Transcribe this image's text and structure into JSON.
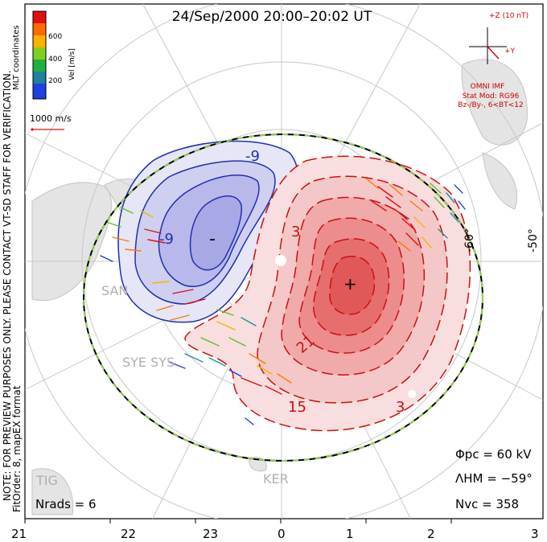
{
  "title": "24/Sep/2000 20:00–20:02 UT",
  "colorbar": {
    "label": "Vel [m/s]",
    "ticks": [
      "600",
      "400",
      "200"
    ],
    "colors": [
      "#e01010",
      "#ff6a00",
      "#ffb000",
      "#80d020",
      "#20b040",
      "#2080a0",
      "#2040e0"
    ]
  },
  "coordinates": "MLT coordinates",
  "scale_vector": "1000 m/s",
  "side_note": "NOTE: FOR PREVIEW PURPOSES ONLY. PLEASE CONTACT VT-SD STAFF FOR VERIFICATION.",
  "fit_order": "FitOrder: 8, mapEX format",
  "imf": {
    "z_label": "+Z (10 nT)",
    "y_label": "+Y",
    "source": "OMNI IMF",
    "model": "Stat Mod: RG96",
    "condition": "Bz-/By-, 6<BT<12"
  },
  "lat_labels": [
    "-60°",
    "-50°"
  ],
  "contours": {
    "neg": [
      "-9",
      "-9",
      "-"
    ],
    "pos": [
      "3",
      "3",
      "21",
      "15",
      "+"
    ]
  },
  "radar_labels": [
    "SAN",
    "SYE SYS",
    "TIG",
    "KER"
  ],
  "stats": {
    "phi_pc": "Φpc  =  60 kV",
    "lambda_hm": "ΛHM  =  −59°",
    "n_vc": "Nvc  =  358",
    "n_rads": "Nrads  =  6"
  },
  "mlt_axis": [
    "21",
    "22",
    "23",
    "0",
    "1",
    "2",
    "3"
  ]
}
